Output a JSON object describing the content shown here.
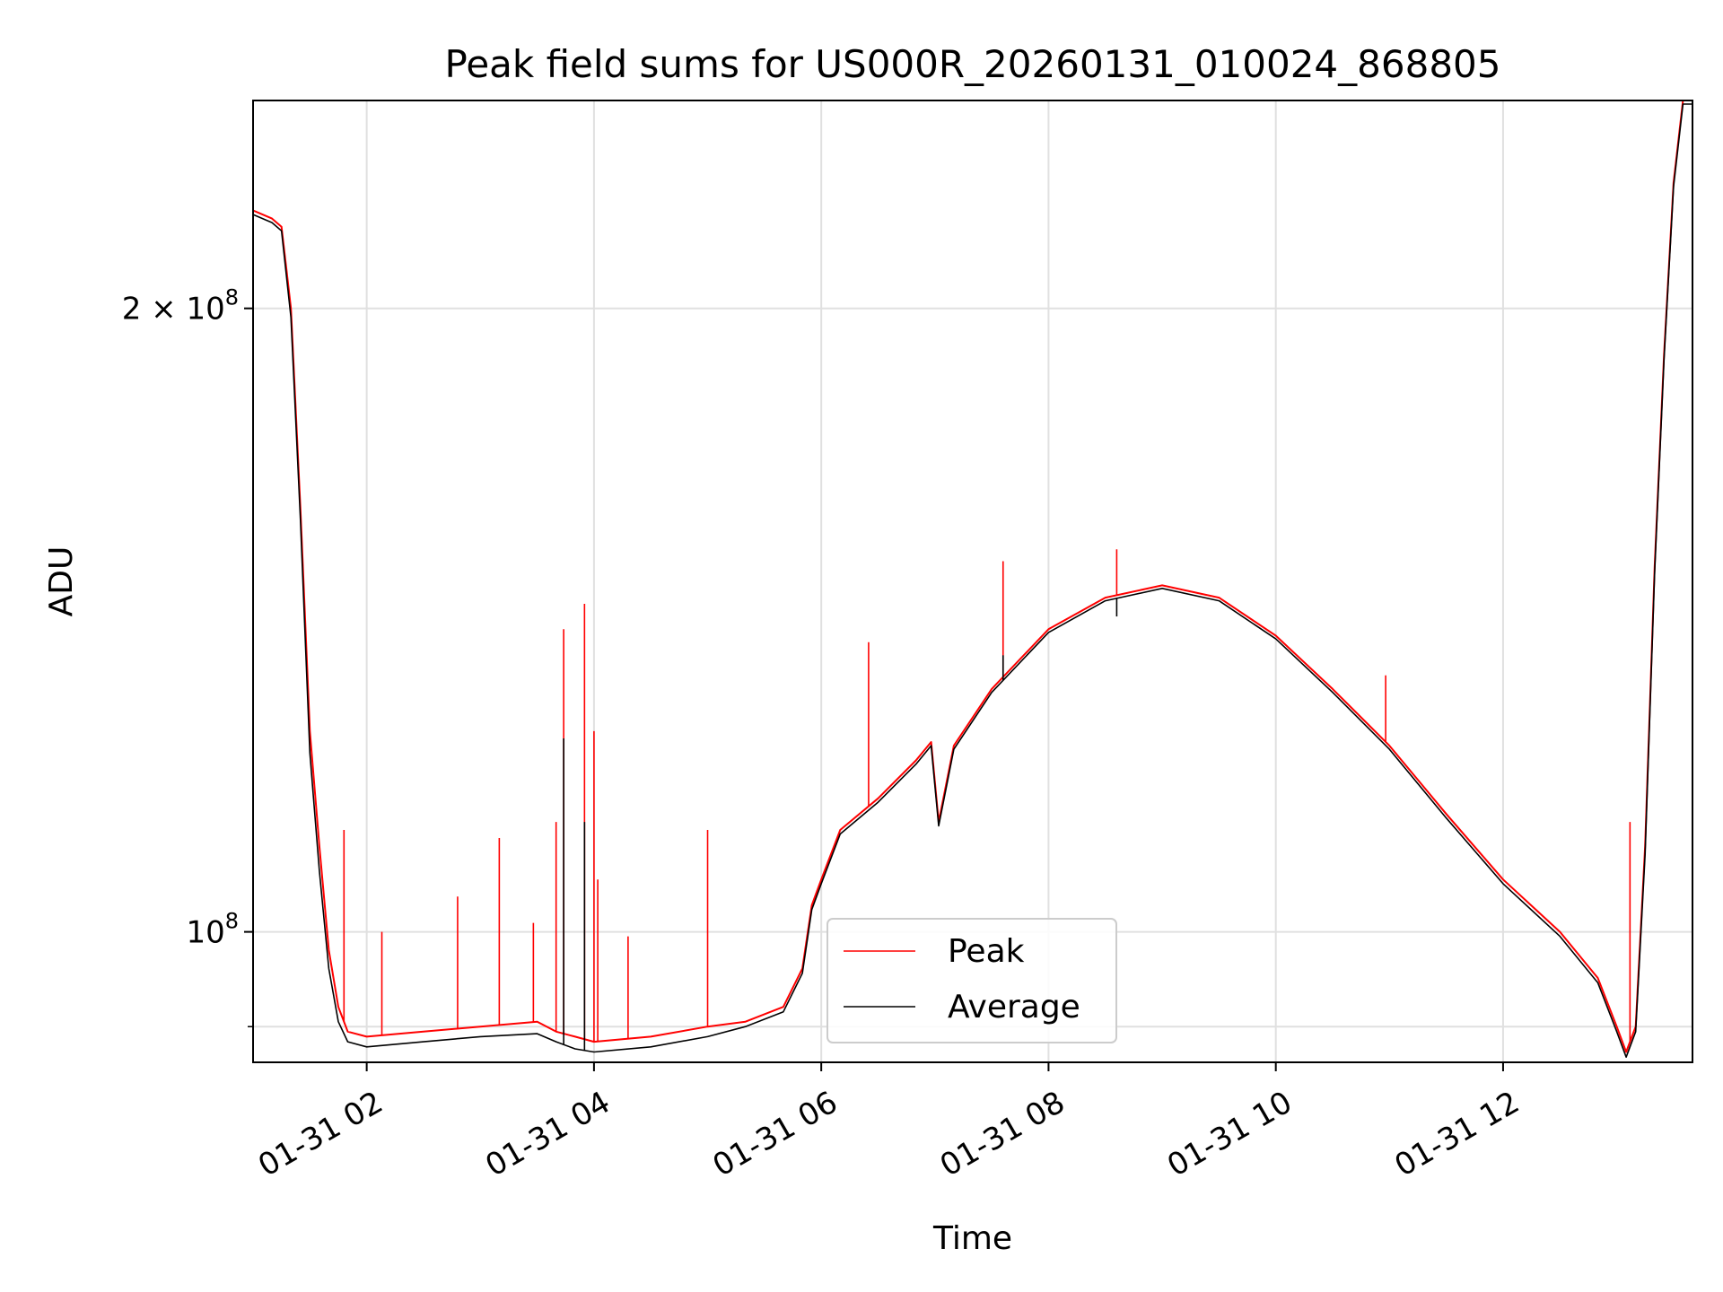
{
  "chart_data": {
    "type": "line",
    "title": "Peak field sums for US000R_20260131_010024_868805",
    "xlabel": "Time",
    "ylabel": "ADU",
    "y_scale": "log",
    "grid": true,
    "legend_position": "lower-center",
    "xlim": [
      "2026-01-31 01:00",
      "2026-01-31 13:40"
    ],
    "ylim": [
      86500000,
      252000000
    ],
    "x_ticks": [
      {
        "value": "2026-01-31 02:00",
        "label": "01-31 02"
      },
      {
        "value": "2026-01-31 04:00",
        "label": "01-31 04"
      },
      {
        "value": "2026-01-31 06:00",
        "label": "01-31 06"
      },
      {
        "value": "2026-01-31 08:00",
        "label": "01-31 08"
      },
      {
        "value": "2026-01-31 10:00",
        "label": "01-31 10"
      },
      {
        "value": "2026-01-31 12:00",
        "label": "01-31 12"
      }
    ],
    "y_ticks_major": [
      {
        "value": 100000000,
        "base": "10",
        "exp": "8",
        "mantissa": ""
      },
      {
        "value": 200000000,
        "base": "10",
        "exp": "8",
        "mantissa": "2 × "
      }
    ],
    "y_ticks_minor": [
      90000000
    ],
    "series": [
      {
        "name": "Peak",
        "color": "#ff0000",
        "x": [
          "2026-01-31 01:00",
          "2026-01-31 01:10",
          "2026-01-31 01:15",
          "2026-01-31 01:20",
          "2026-01-31 01:25",
          "2026-01-31 01:30",
          "2026-01-31 01:35",
          "2026-01-31 01:40",
          "2026-01-31 01:45",
          "2026-01-31 01:50",
          "2026-01-31 02:00",
          "2026-01-31 02:30",
          "2026-01-31 03:00",
          "2026-01-31 03:30",
          "2026-01-31 03:40",
          "2026-01-31 03:50",
          "2026-01-31 04:00",
          "2026-01-31 04:30",
          "2026-01-31 05:00",
          "2026-01-31 05:20",
          "2026-01-31 05:40",
          "2026-01-31 05:50",
          "2026-01-31 05:55",
          "2026-01-31 06:00",
          "2026-01-31 06:10",
          "2026-01-31 06:30",
          "2026-01-31 06:50",
          "2026-01-31 06:58",
          "2026-01-31 07:02",
          "2026-01-31 07:10",
          "2026-01-31 07:30",
          "2026-01-31 08:00",
          "2026-01-31 08:30",
          "2026-01-31 09:00",
          "2026-01-31 09:30",
          "2026-01-31 10:00",
          "2026-01-31 10:30",
          "2026-01-31 11:00",
          "2026-01-31 11:30",
          "2026-01-31 12:00",
          "2026-01-31 12:30",
          "2026-01-31 12:50",
          "2026-01-31 13:00",
          "2026-01-31 13:05",
          "2026-01-31 13:10",
          "2026-01-31 13:15",
          "2026-01-31 13:20",
          "2026-01-31 13:25",
          "2026-01-31 13:30",
          "2026-01-31 13:35",
          "2026-01-31 13:40"
        ],
        "values": [
          223000000,
          221000000,
          219000000,
          200000000,
          160000000,
          125000000,
          110000000,
          98000000,
          92000000,
          89500000,
          89000000,
          89500000,
          90000000,
          90500000,
          89500000,
          89000000,
          88500000,
          89000000,
          90000000,
          90500000,
          92000000,
          96000000,
          103000000,
          106000000,
          112000000,
          116000000,
          121000000,
          123500000,
          113000000,
          123000000,
          131000000,
          140000000,
          145000000,
          147000000,
          145000000,
          139000000,
          131000000,
          123000000,
          114000000,
          106000000,
          100000000,
          95000000,
          90000000,
          87500000,
          90000000,
          110000000,
          150000000,
          190000000,
          230000000,
          252000000,
          252000000
        ],
        "spikes": [
          {
            "x": "2026-01-31 01:48",
            "value": 112000000
          },
          {
            "x": "2026-01-31 02:08",
            "value": 100000000
          },
          {
            "x": "2026-01-31 02:48",
            "value": 104000000
          },
          {
            "x": "2026-01-31 03:10",
            "value": 111000000
          },
          {
            "x": "2026-01-31 03:28",
            "value": 101000000
          },
          {
            "x": "2026-01-31 03:40",
            "value": 113000000
          },
          {
            "x": "2026-01-31 03:44",
            "value": 140000000
          },
          {
            "x": "2026-01-31 03:55",
            "value": 144000000
          },
          {
            "x": "2026-01-31 04:00",
            "value": 125000000
          },
          {
            "x": "2026-01-31 04:02",
            "value": 106000000
          },
          {
            "x": "2026-01-31 04:18",
            "value": 99500000
          },
          {
            "x": "2026-01-31 05:00",
            "value": 112000000
          },
          {
            "x": "2026-01-31 06:25",
            "value": 138000000
          },
          {
            "x": "2026-01-31 07:36",
            "value": 151000000
          },
          {
            "x": "2026-01-31 08:36",
            "value": 153000000
          },
          {
            "x": "2026-01-31 10:58",
            "value": 133000000
          },
          {
            "x": "2026-01-31 13:07",
            "value": 113000000
          }
        ]
      },
      {
        "name": "Average",
        "color": "#000000",
        "x": [
          "2026-01-31 01:00",
          "2026-01-31 01:10",
          "2026-01-31 01:15",
          "2026-01-31 01:20",
          "2026-01-31 01:25",
          "2026-01-31 01:30",
          "2026-01-31 01:35",
          "2026-01-31 01:40",
          "2026-01-31 01:45",
          "2026-01-31 01:50",
          "2026-01-31 02:00",
          "2026-01-31 02:30",
          "2026-01-31 03:00",
          "2026-01-31 03:30",
          "2026-01-31 03:40",
          "2026-01-31 03:50",
          "2026-01-31 04:00",
          "2026-01-31 04:30",
          "2026-01-31 05:00",
          "2026-01-31 05:20",
          "2026-01-31 05:40",
          "2026-01-31 05:50",
          "2026-01-31 05:55",
          "2026-01-31 06:00",
          "2026-01-31 06:10",
          "2026-01-31 06:30",
          "2026-01-31 06:50",
          "2026-01-31 06:58",
          "2026-01-31 07:02",
          "2026-01-31 07:10",
          "2026-01-31 07:30",
          "2026-01-31 08:00",
          "2026-01-31 08:30",
          "2026-01-31 09:00",
          "2026-01-31 09:30",
          "2026-01-31 10:00",
          "2026-01-31 10:30",
          "2026-01-31 11:00",
          "2026-01-31 11:30",
          "2026-01-31 12:00",
          "2026-01-31 12:30",
          "2026-01-31 12:50",
          "2026-01-31 13:00",
          "2026-01-31 13:05",
          "2026-01-31 13:10",
          "2026-01-31 13:15",
          "2026-01-31 13:20",
          "2026-01-31 13:25",
          "2026-01-31 13:30",
          "2026-01-31 13:35",
          "2026-01-31 13:40"
        ],
        "values": [
          222000000,
          220000000,
          218000000,
          198000000,
          158000000,
          122000000,
          107000000,
          96000000,
          90500000,
          88500000,
          88000000,
          88500000,
          89000000,
          89300000,
          88500000,
          87800000,
          87500000,
          88000000,
          89000000,
          90000000,
          91500000,
          95500000,
          102500000,
          105500000,
          111500000,
          115500000,
          120500000,
          123000000,
          112500000,
          122500000,
          130500000,
          139500000,
          144500000,
          146500000,
          144500000,
          138500000,
          130500000,
          122500000,
          113500000,
          105500000,
          99500000,
          94500000,
          89500000,
          87000000,
          89500000,
          109000000,
          149000000,
          189000000,
          229000000,
          251000000,
          251000000
        ],
        "spikes": [
          {
            "x": "2026-01-31 03:44",
            "value": 124000000
          },
          {
            "x": "2026-01-31 03:55",
            "value": 113000000
          },
          {
            "x": "2026-01-31 07:36",
            "value": 136000000
          },
          {
            "x": "2026-01-31 08:36",
            "value": 142000000
          }
        ]
      }
    ]
  }
}
